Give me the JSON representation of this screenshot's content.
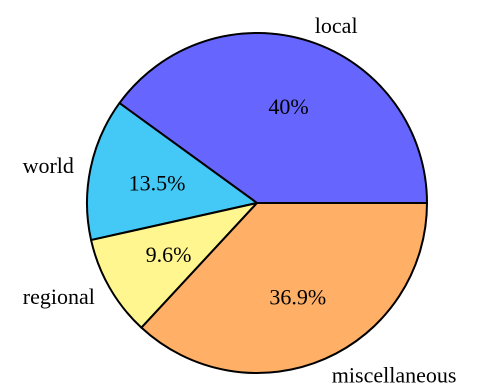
{
  "chart_data": {
    "type": "pie",
    "title": "",
    "slices": [
      {
        "label": "local",
        "value": 40,
        "pct_label": "40%",
        "color": "#6666ff"
      },
      {
        "label": "world",
        "value": 13.5,
        "pct_label": "13.5%",
        "color": "#44c8f5"
      },
      {
        "label": "regional",
        "value": 9.6,
        "pct_label": "9.6%",
        "color": "#fff68f"
      },
      {
        "label": "miscellaneous",
        "value": 36.9,
        "pct_label": "36.9%",
        "color": "#ffb066"
      }
    ],
    "start_angle_deg": 0,
    "direction": "counterclockwise",
    "edge_color": "#000000"
  }
}
